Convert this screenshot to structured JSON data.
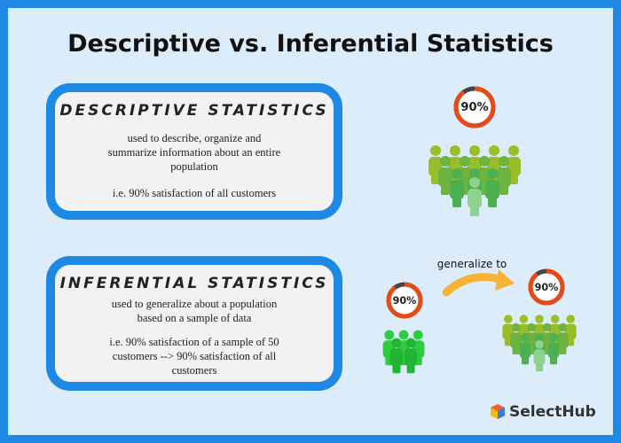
{
  "header": {
    "title": "Descriptive vs. Inferential Statistics"
  },
  "boxes": [
    {
      "heading": "DESCRIPTIVE STATISTICS",
      "description": [
        "used to describe, organize and",
        "summarize information about an entire",
        "population"
      ],
      "example": [
        "i.e. 90% satisfaction of all customers"
      ]
    },
    {
      "heading": "INFERENTIAL STATISTICS",
      "description": [
        "used to generalize about a population",
        "based on a sample of data"
      ],
      "example": [
        "i.e. 90% satisfaction of a sample of 50",
        "customers --> 90% satisfaction of all",
        "customers"
      ]
    }
  ],
  "rings": [
    {
      "value": 90,
      "label": "90%"
    },
    {
      "value": 90,
      "label": "90%"
    },
    {
      "value": 90,
      "label": "90%"
    }
  ],
  "arrow_label": "generalize to",
  "brand": "SelectHub"
}
